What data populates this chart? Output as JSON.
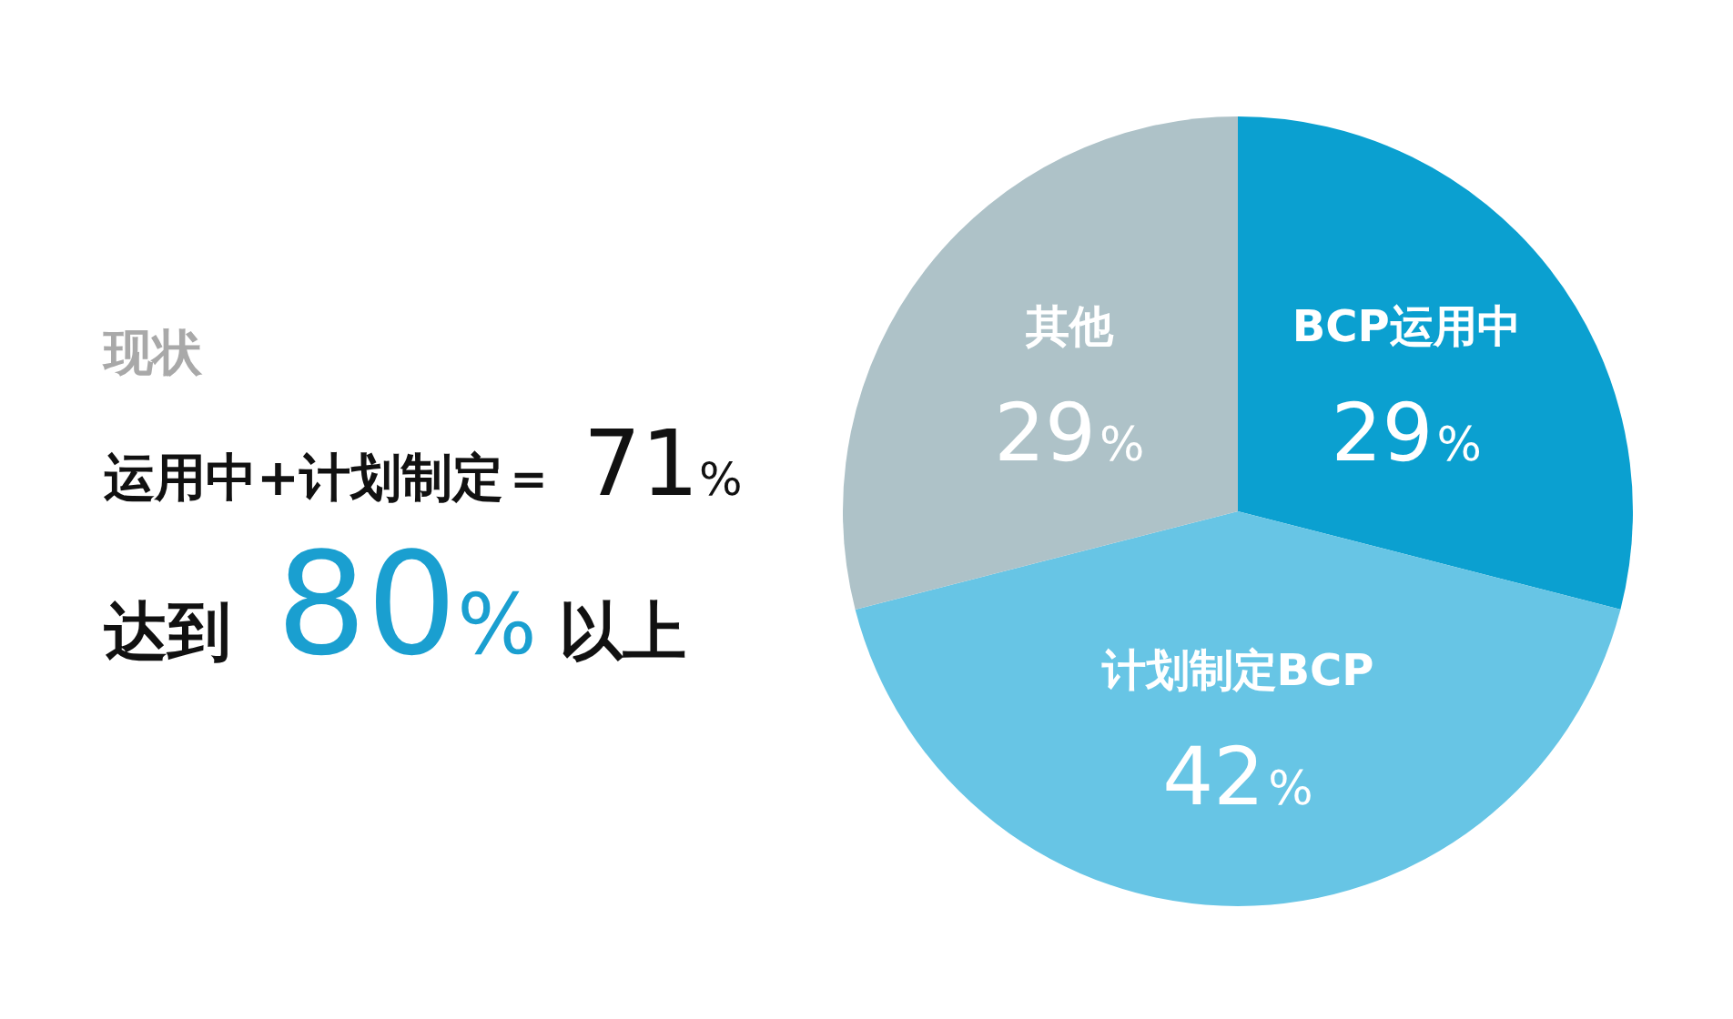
{
  "chart_data": {
    "type": "pie",
    "title": "现状",
    "categories": [
      "BCP运用中",
      "计划制定BCP",
      "其他"
    ],
    "values": [
      29,
      42,
      29
    ],
    "colors": [
      "#0ba0d0",
      "#67c5e5",
      "#aec2c8"
    ],
    "value_labels": [
      "29%",
      "42%",
      "29%"
    ],
    "annotations": [
      "运用中+计划制定＝ 71%",
      "达到 80% 以上"
    ]
  }
}
